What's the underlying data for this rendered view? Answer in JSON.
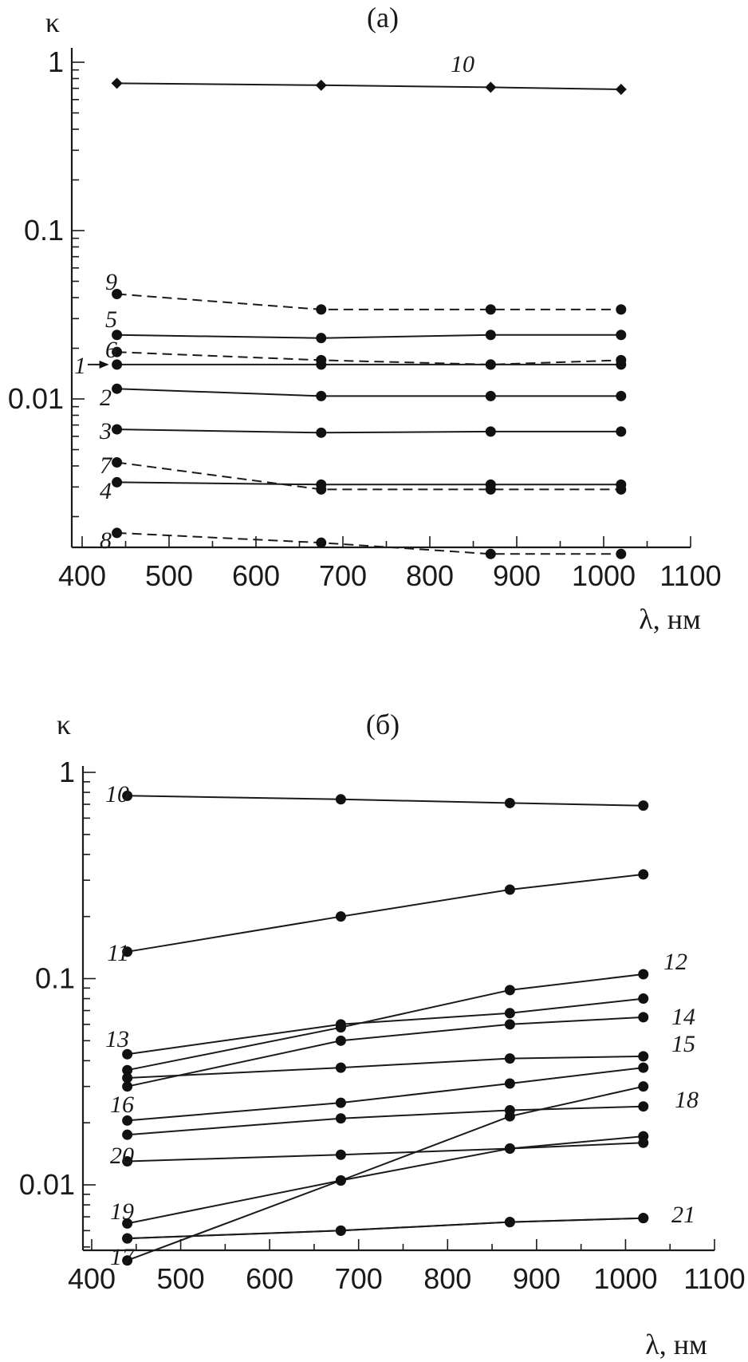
{
  "chart_data": [
    {
      "type": "line",
      "panel_label": "(a)",
      "xlabel": "λ, нм",
      "ylabel": "κ",
      "yscale": "log",
      "xlim": [
        400,
        1100
      ],
      "ylim": [
        0.0011,
        1.3
      ],
      "xticks": [
        "400",
        "500",
        "600",
        "700",
        "800",
        "900",
        "1000",
        "1100"
      ],
      "yticks": [
        "1",
        "0.1",
        "0.01"
      ],
      "x": [
        440,
        675,
        870,
        1020
      ],
      "series": [
        {
          "name": "10",
          "style": "solid",
          "marker": "diamond",
          "values": [
            0.75,
            0.73,
            0.71,
            0.69
          ]
        },
        {
          "name": "9",
          "style": "dashed",
          "marker": "circle",
          "values": [
            0.042,
            0.034,
            0.034,
            0.034
          ]
        },
        {
          "name": "5",
          "style": "solid",
          "marker": "circle",
          "values": [
            0.024,
            0.023,
            0.024,
            0.024
          ]
        },
        {
          "name": "6",
          "style": "dashed",
          "marker": "circle",
          "values": [
            0.019,
            0.017,
            0.016,
            0.017
          ]
        },
        {
          "name": "1",
          "style": "solid",
          "marker": "circle",
          "values": [
            0.016,
            0.016,
            0.016,
            0.016
          ]
        },
        {
          "name": "2",
          "style": "solid",
          "marker": "circle",
          "values": [
            0.0115,
            0.0104,
            0.0104,
            0.0104
          ]
        },
        {
          "name": "3",
          "style": "solid",
          "marker": "circle",
          "values": [
            0.0066,
            0.0063,
            0.0064,
            0.0064
          ]
        },
        {
          "name": "7",
          "style": "dashed",
          "marker": "circle",
          "values": [
            0.0042,
            0.0029,
            0.0029,
            0.0029
          ]
        },
        {
          "name": "4",
          "style": "solid",
          "marker": "circle",
          "values": [
            0.0032,
            0.0031,
            0.0031,
            0.0031
          ]
        },
        {
          "name": "8",
          "style": "dashed",
          "marker": "circle",
          "values": [
            0.0016,
            0.0014,
            0.0012,
            0.0012
          ]
        }
      ]
    },
    {
      "type": "line",
      "panel_label": "(б)",
      "xlabel": "λ, нм",
      "ylabel": "κ",
      "yscale": "log",
      "xlim": [
        400,
        1100
      ],
      "ylim": [
        0.0043,
        1.1
      ],
      "xticks": [
        "400",
        "500",
        "600",
        "700",
        "800",
        "900",
        "1000",
        "1100"
      ],
      "yticks": [
        "1",
        "0.1",
        "0.01"
      ],
      "x": [
        440,
        680,
        870,
        1020
      ],
      "series": [
        {
          "name": "10",
          "style": "solid",
          "marker": "circle",
          "values": [
            0.77,
            0.74,
            0.71,
            0.69
          ]
        },
        {
          "name": "11",
          "style": "solid",
          "marker": "circle",
          "values": [
            0.135,
            0.2,
            0.27,
            0.32
          ]
        },
        {
          "name": "12",
          "style": "solid",
          "marker": "circle",
          "values": [
            0.036,
            0.058,
            0.088,
            0.105
          ]
        },
        {
          "name": "13",
          "style": "solid",
          "marker": "circle",
          "values": [
            0.043,
            0.06,
            0.068,
            0.08
          ]
        },
        {
          "name": "14",
          "style": "solid",
          "marker": "circle",
          "values": [
            0.03,
            0.05,
            0.06,
            0.065
          ]
        },
        {
          "name": "15",
          "style": "solid",
          "marker": "circle",
          "values": [
            0.033,
            0.037,
            0.041,
            0.042
          ]
        },
        {
          "name": "",
          "style": "solid",
          "marker": "circle",
          "values": [
            0.0205,
            0.025,
            0.031,
            0.037
          ]
        },
        {
          "name": "16",
          "style": "solid",
          "marker": "circle",
          "values": [
            0.0175,
            0.021,
            0.023,
            0.024
          ]
        },
        {
          "name": "18",
          "style": "solid",
          "marker": "circle",
          "values": [
            0.0043,
            0.0105,
            0.0215,
            0.03
          ]
        },
        {
          "name": "20",
          "style": "solid",
          "marker": "circle",
          "values": [
            0.013,
            0.014,
            0.015,
            0.016
          ]
        },
        {
          "name": "19",
          "style": "solid",
          "marker": "circle",
          "values": [
            0.0065,
            0.0105,
            0.015,
            0.0172
          ]
        },
        {
          "name": "17",
          "style": "solid",
          "marker": "circle",
          "values": [
            0.0055,
            0.006,
            0.0066,
            0.0069
          ]
        },
        {
          "name": "21",
          "style": "solid",
          "marker": "circle",
          "values": [
            0.0055,
            0.006,
            0.0066,
            0.0069
          ]
        }
      ]
    }
  ]
}
